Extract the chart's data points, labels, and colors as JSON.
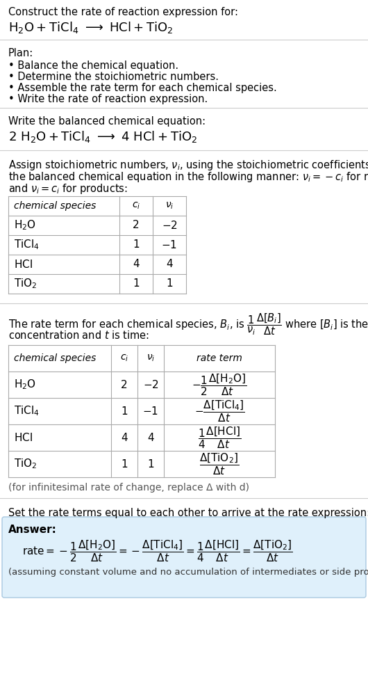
{
  "bg_color": "#ffffff",
  "text_color": "#000000",
  "title_line1": "Construct the rate of reaction expression for:",
  "plan_header": "Plan:",
  "plan_items": [
    "• Balance the chemical equation.",
    "• Determine the stoichiometric numbers.",
    "• Assemble the rate term for each chemical species.",
    "• Write the rate of reaction expression."
  ],
  "balanced_header": "Write the balanced chemical equation:",
  "stoich_text1": "Assign stoichiometric numbers, νᵢ, using the stoichiometric coefficients, cᵢ, from",
  "stoich_text2": "the balanced chemical equation in the following manner: νᵢ = −cᵢ for reactants",
  "stoich_text3": "and νᵢ = cᵢ for products:",
  "infinitesimal_note": "(for infinitesimal rate of change, replace Δ with d)",
  "final_header": "Set the rate terms equal to each other to arrive at the rate expression:",
  "answer_box_color": "#dff0fb",
  "answer_border_color": "#a8c8e0",
  "answer_note": "(assuming constant volume and no accumulation of intermediates or side products)",
  "line_color": "#cccccc",
  "table_border_color": "#aaaaaa",
  "species1": [
    "H$_2$O",
    "TiCl$_4$",
    "HCl",
    "TiO$_2$"
  ],
  "ci1": [
    "2",
    "1",
    "4",
    "1"
  ],
  "vi1": [
    "-2",
    "-1",
    "4",
    "1"
  ]
}
